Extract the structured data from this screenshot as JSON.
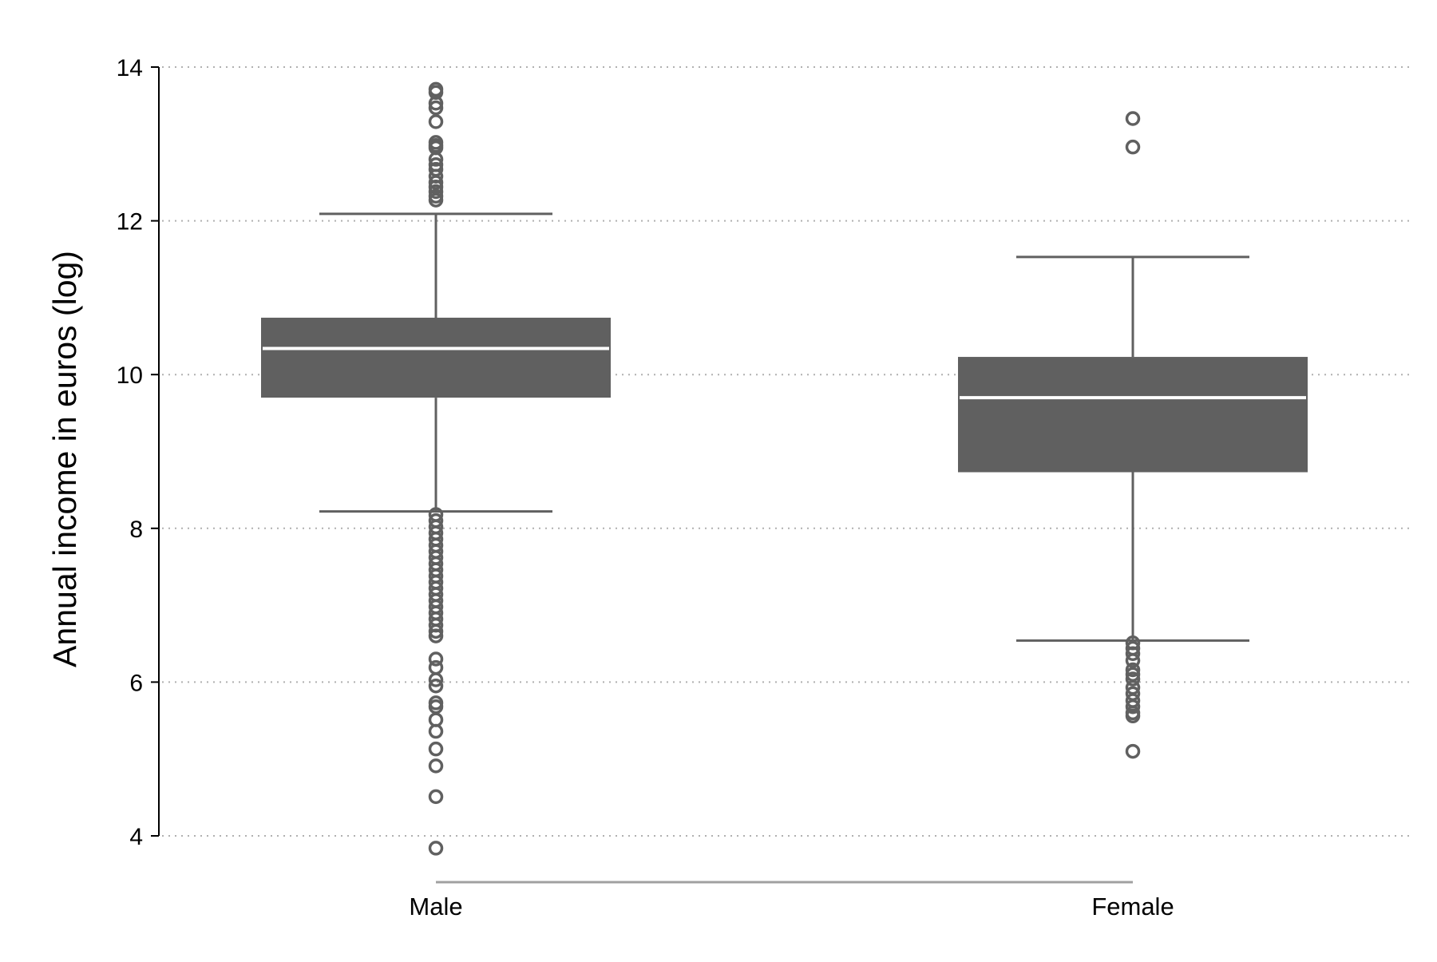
{
  "chart_data": {
    "type": "box",
    "title": "",
    "xlabel": "",
    "ylabel": "Annual income in euros (log)",
    "ylim": [
      4,
      14
    ],
    "yticks": [
      4,
      6,
      8,
      10,
      12,
      14
    ],
    "ytick_labels": [
      "4",
      "6",
      "8",
      "10",
      "12",
      "14"
    ],
    "grid": "horizontal dotted",
    "legend": "none",
    "colors": {
      "box_fill": "#606060",
      "median": "#ffffff",
      "whisker": "#606060",
      "outlier": "#606060",
      "grid": "#b0b0b0",
      "axis": "#000000",
      "category_axis": "#a0a0a0"
    },
    "categories": [
      "Male",
      "Female"
    ],
    "boxes": [
      {
        "category": "Male",
        "q1": 9.7,
        "median": 10.34,
        "q3": 10.74,
        "whisker_low": 8.22,
        "whisker_high": 12.09,
        "outliers": [
          13.71,
          13.67,
          13.53,
          13.47,
          13.29,
          13.02,
          12.98,
          12.95,
          12.8,
          12.73,
          12.67,
          12.58,
          12.5,
          12.44,
          12.38,
          12.32,
          12.27,
          8.18,
          8.1,
          8.02,
          7.94,
          7.86,
          7.78,
          7.7,
          7.62,
          7.54,
          7.46,
          7.38,
          7.3,
          7.22,
          7.14,
          7.06,
          6.98,
          6.9,
          6.82,
          6.74,
          6.66,
          6.6,
          6.3,
          6.19,
          6.03,
          5.95,
          5.73,
          5.68,
          5.51,
          5.36,
          5.13,
          4.91,
          4.51,
          3.84
        ]
      },
      {
        "category": "Female",
        "q1": 8.73,
        "median": 9.7,
        "q3": 10.23,
        "whisker_low": 6.54,
        "whisker_high": 11.53,
        "outliers": [
          13.33,
          12.96,
          6.51,
          6.44,
          6.37,
          6.28,
          6.16,
          6.1,
          6.04,
          5.93,
          5.85,
          5.76,
          5.68,
          5.6,
          5.56,
          5.1
        ]
      }
    ]
  }
}
